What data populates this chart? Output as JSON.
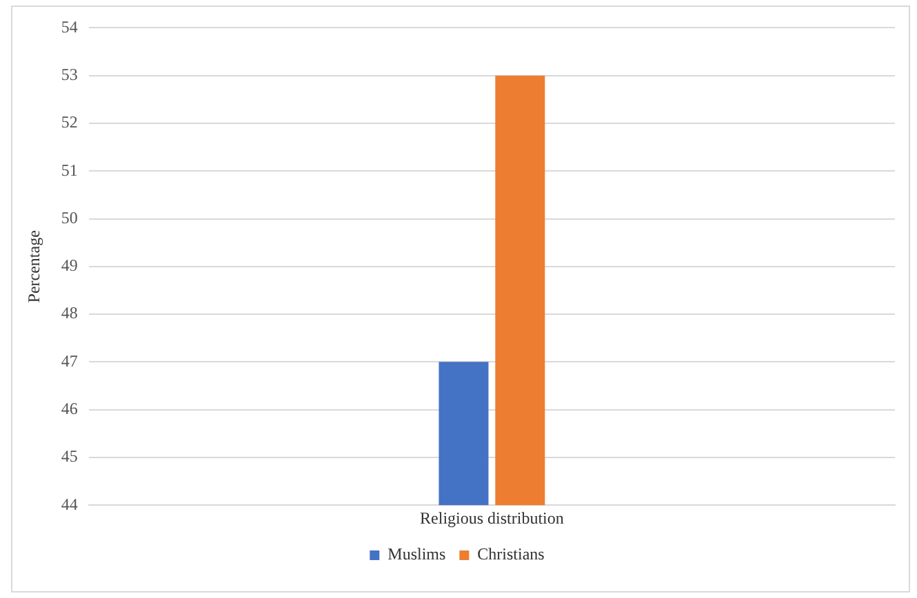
{
  "chart_data": {
    "type": "bar",
    "ylabel": "Percentage",
    "categories": [
      "Religious distribution"
    ],
    "series": [
      {
        "name": "Muslims",
        "color": "#4472c4",
        "values": [
          47
        ]
      },
      {
        "name": "Christians",
        "color": "#ed7d31",
        "values": [
          53
        ]
      }
    ],
    "ylim": [
      44,
      54
    ],
    "yticks": [
      44,
      45,
      46,
      47,
      48,
      49,
      50,
      51,
      52,
      53,
      54
    ],
    "grid": "y",
    "legend": "bottom"
  }
}
